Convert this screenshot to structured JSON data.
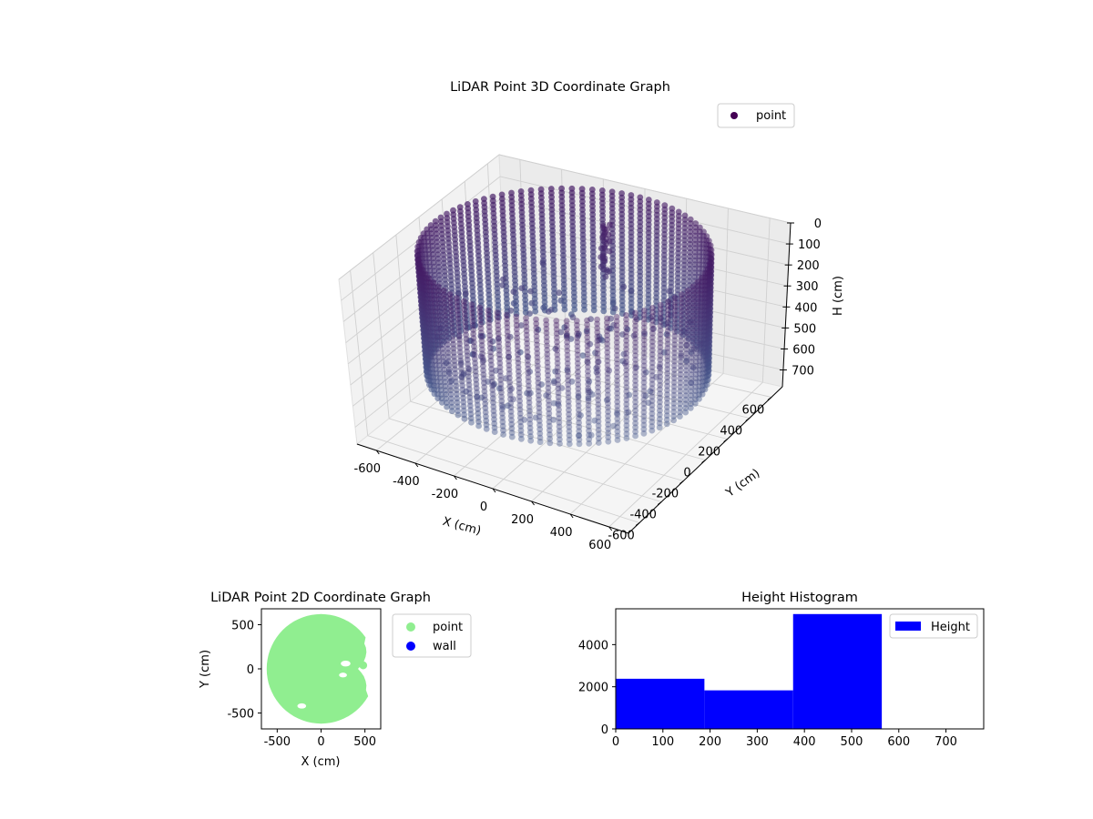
{
  "chart_data": [
    {
      "type": "scatter",
      "projection": "3d",
      "title": "LiDAR Point 3D Coordinate Graph",
      "xlabel": "X (cm)",
      "ylabel": "Y (cm)",
      "zlabel": "H (cm)",
      "xlim": [
        -700,
        700
      ],
      "ylim": [
        -700,
        700
      ],
      "zlim": [
        0,
        780
      ],
      "z_inverted": true,
      "xticks": [
        -600,
        -400,
        -200,
        0,
        200,
        400,
        600
      ],
      "yticks": [
        -600,
        -400,
        -200,
        0,
        200,
        400,
        600
      ],
      "zticks": [
        0,
        100,
        200,
        300,
        400,
        500,
        600,
        700
      ],
      "grid": true,
      "legend": {
        "position": "upper-right",
        "entries": [
          {
            "label": "point",
            "color": "#440154"
          }
        ]
      },
      "colormap": "viridis (depth-shaded, dark purple to blue-grey)",
      "description_of_data": "cylindrical wall of points, radius ~620 cm, height 0-560 cm, with interior clutter and a vertical structure near x=0, y=300",
      "series": [
        {
          "name": "point",
          "shape": "cylinder-wall",
          "radius": 620,
          "h_range": [
            0,
            560
          ]
        }
      ]
    },
    {
      "type": "scatter",
      "title": "LiDAR Point 2D Coordinate Graph",
      "xlabel": "X (cm)",
      "ylabel": "Y (cm)",
      "xlim": [
        -680,
        680
      ],
      "ylim": [
        -680,
        680
      ],
      "xticks": [
        -500,
        0,
        500
      ],
      "yticks": [
        -500,
        0,
        500
      ],
      "legend": {
        "position": "outside-right",
        "entries": [
          {
            "label": "point",
            "color": "#90ee90"
          },
          {
            "label": "wall",
            "color": "#0000ff"
          }
        ]
      },
      "description_of_data": "filled disc of points radius ~620 cm with an empty notch on the right side"
    },
    {
      "type": "bar",
      "subtype": "histogram",
      "title": "Height Histogram",
      "xlim": [
        0,
        780
      ],
      "ylim": [
        0,
        5700
      ],
      "xticks": [
        0,
        100,
        200,
        300,
        400,
        500,
        600,
        700
      ],
      "yticks": [
        0,
        2000,
        4000
      ],
      "bin_edges": [
        0,
        188,
        376,
        564
      ],
      "values": [
        2380,
        1830,
        5450
      ],
      "color": "#0000ff",
      "legend": {
        "position": "upper-right",
        "entries": [
          {
            "label": "Height",
            "color": "#0000ff"
          }
        ]
      }
    }
  ]
}
